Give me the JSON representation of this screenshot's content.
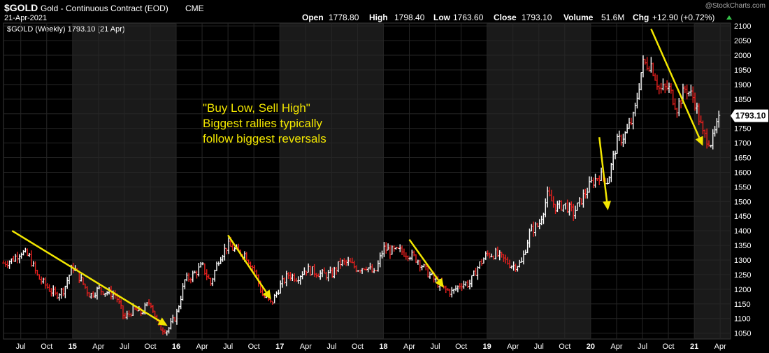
{
  "header": {
    "symbol": "$GOLD",
    "name": "Gold - Continuous Contract (EOD)",
    "exchange": "CME",
    "date": "21-Apr-2021",
    "open_label": "Open",
    "open": "1778.80",
    "high_label": "High",
    "high": "1798.40",
    "low_label": "Low",
    "low": "1763.60",
    "close_label": "Close",
    "close": "1793.10",
    "volume_label": "Volume",
    "volume": "51.6M",
    "chg_label": "Chg",
    "chg": "+12.90 (+0.72%)",
    "watermark": "@StockCharts.com"
  },
  "legend": {
    "text": "$GOLD (Weekly) 1793.10 (21 Apr)"
  },
  "annotation": {
    "lines": [
      "\"Buy Low, Sell High\"",
      "Biggest rallies typically",
      "follow biggest reversals"
    ]
  },
  "last_price_label": "1793.10",
  "colors": {
    "background": "#000000",
    "band": "#1a1a1a",
    "up": "#ffffff",
    "down": "#e8201e",
    "arrow": "#f2e600",
    "annotation": "#f2e600"
  },
  "chart_data": {
    "type": "line",
    "title": "$GOLD Weekly",
    "ylim": [
      1030,
      2110
    ],
    "y_ticks": [
      1050,
      1100,
      1150,
      1200,
      1250,
      1300,
      1350,
      1400,
      1450,
      1500,
      1550,
      1600,
      1650,
      1700,
      1750,
      1800,
      1850,
      1900,
      1950,
      2000,
      2050,
      2100
    ],
    "x_ticks": [
      "Jul",
      "Oct",
      "15",
      "Apr",
      "Jul",
      "Oct",
      "16",
      "Apr",
      "Jul",
      "Oct",
      "17",
      "Apr",
      "Jul",
      "Oct",
      "18",
      "Apr",
      "Jul",
      "Oct",
      "19",
      "Apr",
      "Jul",
      "Oct",
      "20",
      "Apr",
      "Jul",
      "Oct",
      "21",
      "Apr"
    ],
    "x_tick_dates": [
      "2014-07",
      "2014-10",
      "2015-01",
      "2015-04",
      "2015-07",
      "2015-10",
      "2016-01",
      "2016-04",
      "2016-07",
      "2016-10",
      "2017-01",
      "2017-04",
      "2017-07",
      "2017-10",
      "2018-01",
      "2018-04",
      "2018-07",
      "2018-10",
      "2019-01",
      "2019-04",
      "2019-07",
      "2019-10",
      "2020-01",
      "2020-04",
      "2020-07",
      "2020-10",
      "2021-01",
      "2021-04"
    ],
    "series": [
      {
        "name": "$GOLD (Weekly)",
        "x": [
          "2014-05",
          "2014-06",
          "2014-07",
          "2014-08",
          "2014-09",
          "2014-10",
          "2014-11",
          "2014-12",
          "2015-01",
          "2015-02",
          "2015-03",
          "2015-04",
          "2015-05",
          "2015-06",
          "2015-07",
          "2015-08",
          "2015-09",
          "2015-10",
          "2015-11",
          "2015-12",
          "2016-01",
          "2016-02",
          "2016-03",
          "2016-04",
          "2016-05",
          "2016-06",
          "2016-07",
          "2016-08",
          "2016-09",
          "2016-10",
          "2016-11",
          "2016-12",
          "2017-01",
          "2017-02",
          "2017-03",
          "2017-04",
          "2017-05",
          "2017-06",
          "2017-07",
          "2017-08",
          "2017-09",
          "2017-10",
          "2017-11",
          "2017-12",
          "2018-01",
          "2018-02",
          "2018-03",
          "2018-04",
          "2018-05",
          "2018-06",
          "2018-07",
          "2018-08",
          "2018-09",
          "2018-10",
          "2018-11",
          "2018-12",
          "2019-01",
          "2019-02",
          "2019-03",
          "2019-04",
          "2019-05",
          "2019-06",
          "2019-07",
          "2019-08",
          "2019-09",
          "2019-10",
          "2019-11",
          "2019-12",
          "2020-01",
          "2020-02",
          "2020-03",
          "2020-04",
          "2020-05",
          "2020-06",
          "2020-07",
          "2020-08",
          "2020-09",
          "2020-10",
          "2020-11",
          "2020-12",
          "2021-01",
          "2021-02",
          "2021-03",
          "2021-04"
        ],
        "values": [
          1290,
          1300,
          1330,
          1310,
          1240,
          1210,
          1180,
          1200,
          1280,
          1230,
          1180,
          1200,
          1190,
          1180,
          1100,
          1130,
          1120,
          1160,
          1070,
          1060,
          1110,
          1230,
          1250,
          1280,
          1220,
          1310,
          1350,
          1330,
          1320,
          1270,
          1180,
          1150,
          1210,
          1250,
          1240,
          1270,
          1260,
          1250,
          1250,
          1290,
          1290,
          1270,
          1280,
          1250,
          1340,
          1330,
          1330,
          1320,
          1300,
          1260,
          1230,
          1200,
          1190,
          1220,
          1220,
          1280,
          1320,
          1320,
          1300,
          1280,
          1290,
          1400,
          1420,
          1520,
          1480,
          1490,
          1460,
          1510,
          1560,
          1590,
          1570,
          1700,
          1730,
          1790,
          1970,
          1970,
          1880,
          1890,
          1820,
          1890,
          1850,
          1730,
          1700,
          1790
        ]
      }
    ],
    "arrows": [
      {
        "from": [
          "2014-06",
          1400
        ],
        "to": [
          "2015-12",
          1075
        ]
      },
      {
        "from": [
          "2016-07",
          1385
        ],
        "to": [
          "2016-12",
          1165
        ]
      },
      {
        "from": [
          "2018-04",
          1370
        ],
        "to": [
          "2018-08",
          1205
        ]
      },
      {
        "from": [
          "2020-02",
          1720
        ],
        "to": [
          "2020-03",
          1470
        ]
      },
      {
        "from": [
          "2020-08",
          2090
        ],
        "to": [
          "2021-02",
          1690
        ]
      }
    ]
  }
}
